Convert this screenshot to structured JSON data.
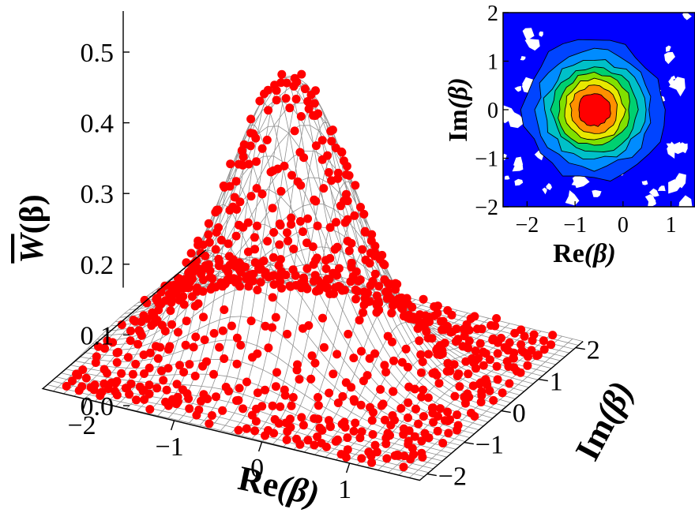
{
  "chart_data": [
    {
      "type": "surface3d-scatter",
      "zlabel_main": "W",
      "zlabel_suffix": "(β)",
      "xlabel_main": "Re",
      "xlabel_suffix": "(β)",
      "ylabel_main": "Im",
      "ylabel_suffix": "(β)",
      "xlim": [
        -2.5,
        1.8
      ],
      "ylim": [
        -2.2,
        2.2
      ],
      "zlim": [
        0,
        0.55
      ],
      "z_ticks": [
        "0.0",
        "0.1",
        "0.2",
        "0.3",
        "0.4",
        "0.5"
      ],
      "x_ticks": [
        "−2",
        "−1",
        "0",
        "1"
      ],
      "y_ticks": [
        "−2",
        "−1",
        "0",
        "1",
        "2"
      ],
      "z_tick_values": [
        0,
        0.1,
        0.2,
        0.3,
        0.4,
        0.5
      ],
      "x_tick_values": [
        -2,
        -1,
        0,
        1
      ],
      "y_tick_values": [
        -2,
        -1,
        0,
        1,
        2
      ],
      "surface": {
        "model": "gaussian",
        "peak": 0.545,
        "center_re": -0.6,
        "center_im": 0,
        "sigma": 0.68,
        "mesh_color": "#909090"
      },
      "points_color": "#ff0000",
      "points_noise": 0.04
    },
    {
      "type": "contour",
      "xlabel_main": "Re",
      "xlabel_suffix": "(β)",
      "ylabel_main": "Im",
      "ylabel_suffix": "(β)",
      "xlim": [
        -2.5,
        1.5
      ],
      "ylim": [
        -2,
        2
      ],
      "x_ticks": [
        "−2",
        "−1",
        "0",
        "1"
      ],
      "y_ticks": [
        "−2",
        "−1",
        "0",
        "1",
        "2"
      ],
      "x_tick_values": [
        -2,
        -1,
        0,
        1
      ],
      "y_tick_values": [
        -2,
        -1,
        0,
        1,
        2
      ],
      "center_re": -0.6,
      "center_im": 0,
      "sigma": 0.68,
      "levels": 9,
      "colors": [
        "#0000ff",
        "#0044ff",
        "#008cff",
        "#00c0c8",
        "#00d070",
        "#80e000",
        "#e8e800",
        "#ff9000",
        "#ff0000"
      ],
      "background_color": "#ffffff"
    }
  ]
}
